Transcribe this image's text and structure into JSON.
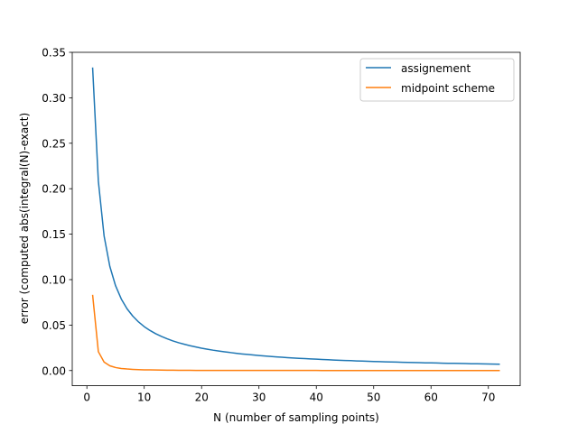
{
  "chart_data": {
    "type": "line",
    "title": "",
    "xlabel": "N (number of sampling points)",
    "ylabel": "error (computed abs(integral(N)-exact)",
    "xlim": [
      -2.55,
      75.55
    ],
    "ylim": [
      -0.0167,
      0.35
    ],
    "xticks": [
      0,
      10,
      20,
      30,
      40,
      50,
      60,
      70
    ],
    "yticks": [
      0.0,
      0.05,
      0.1,
      0.15,
      0.2,
      0.25,
      0.3,
      0.35
    ],
    "ytick_labels": [
      "0.00",
      "0.05",
      "0.10",
      "0.15",
      "0.20",
      "0.25",
      "0.30",
      "0.35"
    ],
    "grid": false,
    "legend_position": "top-right",
    "x": [
      1,
      2,
      3,
      4,
      5,
      6,
      7,
      8,
      9,
      10,
      11,
      12,
      13,
      14,
      15,
      16,
      17,
      18,
      19,
      20,
      21,
      22,
      23,
      24,
      25,
      26,
      27,
      28,
      29,
      30,
      31,
      32,
      33,
      34,
      35,
      36,
      37,
      38,
      39,
      40,
      41,
      42,
      43,
      44,
      45,
      46,
      47,
      48,
      49,
      50,
      51,
      52,
      53,
      54,
      55,
      56,
      57,
      58,
      59,
      60,
      61,
      62,
      63,
      64,
      65,
      66,
      67,
      68,
      69,
      70,
      71,
      72
    ],
    "series": [
      {
        "name": "assignement",
        "color": "#1f77b4",
        "values": [
          0.3333,
          0.2083,
          0.1481,
          0.1146,
          0.0933,
          0.0787,
          0.068,
          0.0599,
          0.0535,
          0.0483,
          0.0441,
          0.0405,
          0.0375,
          0.0349,
          0.0326,
          0.0306,
          0.0289,
          0.0273,
          0.0259,
          0.0246,
          0.0235,
          0.0224,
          0.0215,
          0.0206,
          0.0198,
          0.019,
          0.0183,
          0.0177,
          0.0171,
          0.0165,
          0.016,
          0.0155,
          0.015,
          0.0146,
          0.0142,
          0.0138,
          0.0134,
          0.0131,
          0.0128,
          0.0125,
          0.0122,
          0.0119,
          0.0116,
          0.0113,
          0.0111,
          0.0109,
          0.0106,
          0.0104,
          0.0102,
          0.01,
          0.0098,
          0.0096,
          0.0095,
          0.0093,
          0.0091,
          0.009,
          0.0088,
          0.0087,
          0.0085,
          0.0084,
          0.0083,
          0.0081,
          0.008,
          0.0079,
          0.0078,
          0.0077,
          0.0075,
          0.0074,
          0.0073,
          0.0072,
          0.0071,
          0.007
        ]
      },
      {
        "name": "midpoint scheme",
        "color": "#ff7f0e",
        "values": [
          0.0833,
          0.0208,
          0.0093,
          0.0052,
          0.0033,
          0.0023,
          0.0017,
          0.0013,
          0.001,
          0.0008,
          0.0007,
          0.0006,
          0.0005,
          0.0004,
          0.0004,
          0.0003,
          0.0003,
          0.0003,
          0.0002,
          0.0002,
          0.0002,
          0.0002,
          0.0002,
          0.0001,
          0.0001,
          0.0001,
          0.0001,
          0.0001,
          0.0001,
          0.0001,
          0.0001,
          0.0001,
          0.0001,
          0.0001,
          0.0001,
          0.0001,
          0.0001,
          0.0001,
          0.0001,
          0.0001,
          0.0,
          0.0,
          0.0,
          0.0,
          0.0,
          0.0,
          0.0,
          0.0,
          0.0,
          0.0,
          0.0,
          0.0,
          0.0,
          0.0,
          0.0,
          0.0,
          0.0,
          0.0,
          0.0,
          0.0,
          0.0,
          0.0,
          0.0,
          0.0,
          0.0,
          0.0,
          0.0,
          0.0,
          0.0,
          0.0,
          0.0,
          0.0
        ]
      }
    ]
  }
}
